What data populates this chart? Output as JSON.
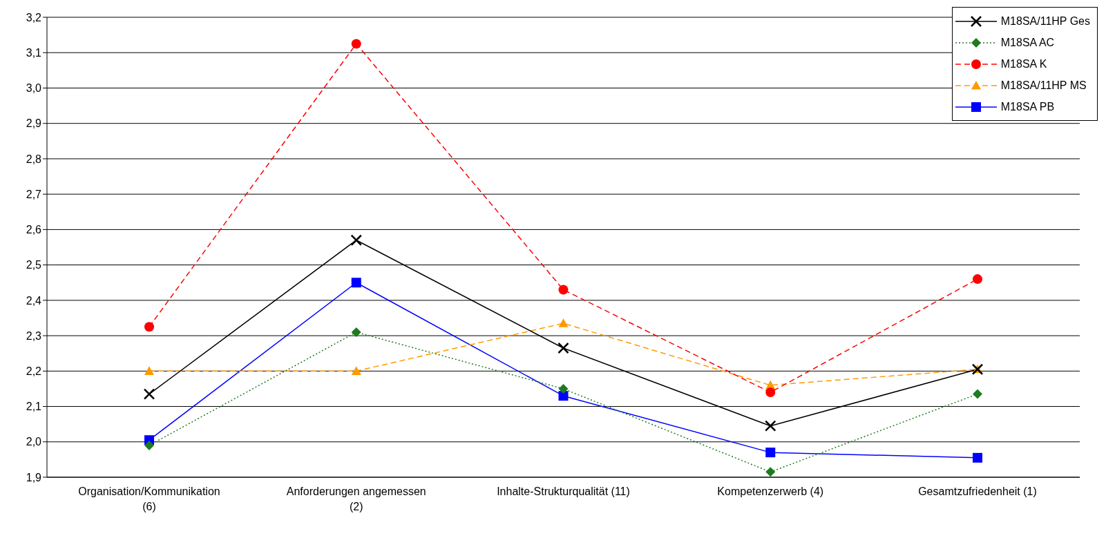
{
  "chart_data": {
    "type": "line",
    "categories": [
      "Organisation/Kommunikation (6)",
      "Anforderungen angemessen (2)",
      "Inhalte-Strukturqualität (11)",
      "Kompetenzerwerb (4)",
      "Gesamtzufriedenheit (1)"
    ],
    "series": [
      {
        "name": "M18SA/11HP Ges",
        "color": "#000000",
        "marker": "cross",
        "line_style": "solid",
        "values": [
          2.135,
          2.57,
          2.265,
          2.045,
          2.205
        ]
      },
      {
        "name": "M18SA AC",
        "color": "#1e7b1e",
        "marker": "diamond",
        "line_style": "dotted",
        "values": [
          1.99,
          2.31,
          2.15,
          1.915,
          2.135
        ]
      },
      {
        "name": "M18SA K",
        "color": "#ff0000",
        "marker": "circle",
        "line_style": "dashed",
        "values": [
          2.325,
          3.125,
          2.43,
          2.14,
          2.46
        ]
      },
      {
        "name": "M18SA/11HP MS",
        "color": "#ff9900",
        "marker": "triangle",
        "line_style": "dashed",
        "values": [
          2.2,
          2.2,
          2.335,
          2.16,
          2.205
        ]
      },
      {
        "name": "M18SA PB",
        "color": "#0000ff",
        "marker": "square",
        "line_style": "solid",
        "values": [
          2.005,
          2.45,
          2.13,
          1.97,
          1.955
        ]
      }
    ],
    "ylim": [
      1.9,
      3.2
    ],
    "yticks": [
      {
        "value": 1.9,
        "label": "1,9"
      },
      {
        "value": 2.0,
        "label": "2,0"
      },
      {
        "value": 2.1,
        "label": "2,1"
      },
      {
        "value": 2.2,
        "label": "2,2"
      },
      {
        "value": 2.3,
        "label": "2,3"
      },
      {
        "value": 2.4,
        "label": "2,4"
      },
      {
        "value": 2.5,
        "label": "2,5"
      },
      {
        "value": 2.6,
        "label": "2,6"
      },
      {
        "value": 2.7,
        "label": "2,7"
      },
      {
        "value": 2.8,
        "label": "2,8"
      },
      {
        "value": 2.9,
        "label": "2,9"
      },
      {
        "value": 3.0,
        "label": "3,0"
      },
      {
        "value": 3.1,
        "label": "3,1"
      },
      {
        "value": 3.2,
        "label": "3,2"
      }
    ],
    "grid": "y",
    "legend": "top right"
  }
}
